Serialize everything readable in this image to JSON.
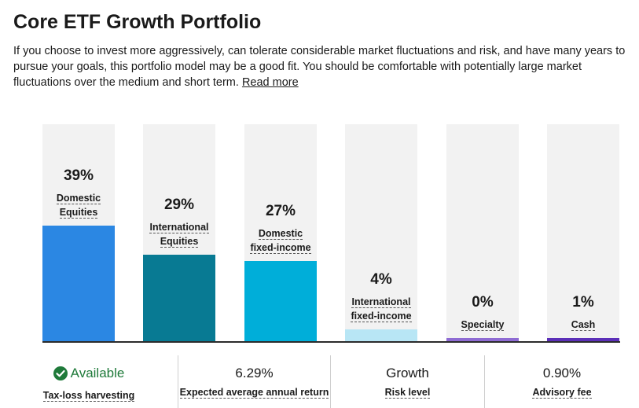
{
  "header": {
    "title": "Core ETF Growth Portfolio",
    "description": "If you choose to invest more aggressively, can tolerate considerable market fluctuations and risk, and have many years to pursue your goals, this portfolio model may be a good fit. You should be comfortable with potentially large market fluctuations over the medium and short term.",
    "read_more": "Read more"
  },
  "chart_data": {
    "type": "bar",
    "categories": [
      [
        "Domestic",
        "Equities"
      ],
      [
        "International",
        "Equities"
      ],
      [
        "Domestic",
        "fixed-income"
      ],
      [
        "International",
        "fixed-income"
      ],
      [
        "Specialty"
      ],
      [
        "Cash"
      ]
    ],
    "values": [
      39,
      29,
      27,
      4,
      0,
      1
    ],
    "value_labels": [
      "39%",
      "29%",
      "27%",
      "4%",
      "0%",
      "1%"
    ],
    "colors": [
      "#2b87e3",
      "#087a93",
      "#00aed9",
      "#b8e6f5",
      "#8e6bd3",
      "#5b2fb8"
    ],
    "ylim": [
      0,
      100
    ],
    "grid": false,
    "legend": "none"
  },
  "stats": [
    {
      "value": "Available",
      "label": "Tax-loss harvesting",
      "icon": "check-circle-icon",
      "color": "#1f7a3a"
    },
    {
      "value": "6.29%",
      "label": "Expected average annual return"
    },
    {
      "value": "Growth",
      "label": "Risk level"
    },
    {
      "value": "0.90%",
      "label": "Advisory fee"
    }
  ]
}
